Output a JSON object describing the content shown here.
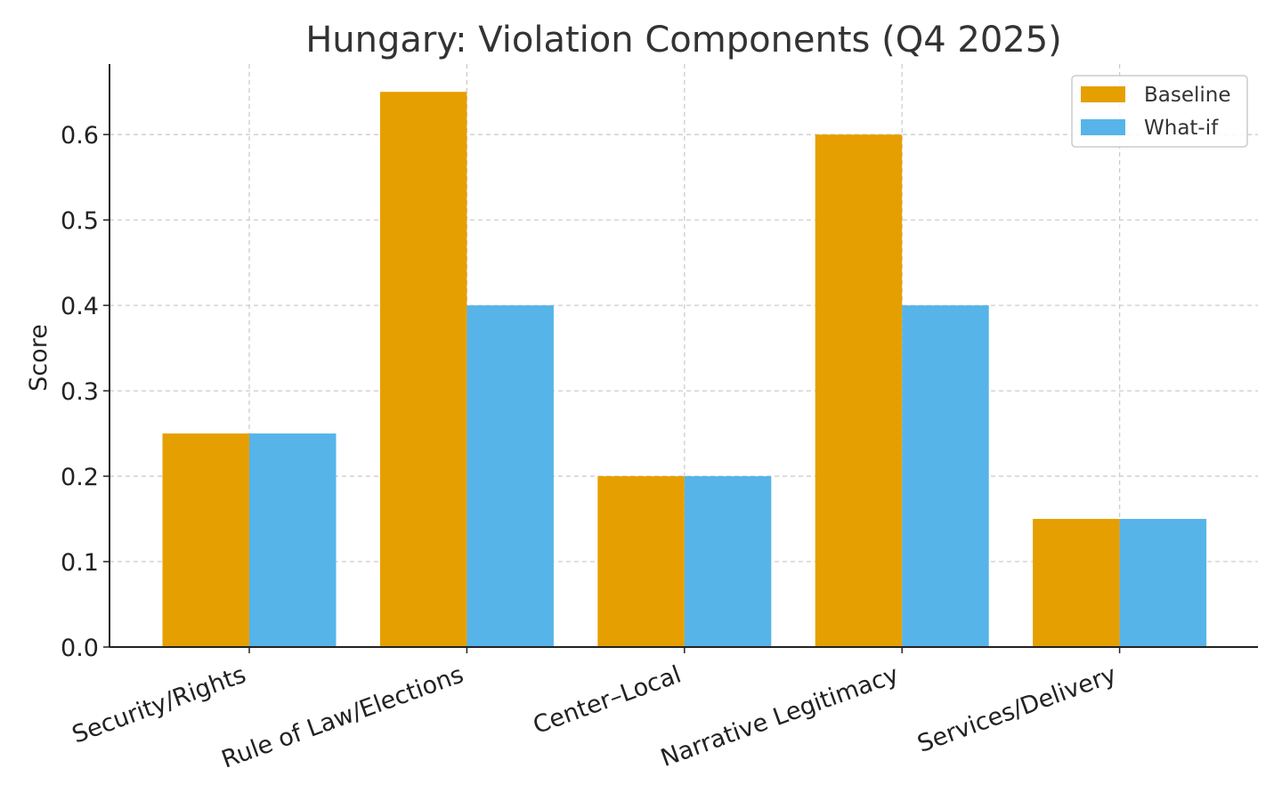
{
  "chart_data": {
    "type": "bar",
    "title": "Hungary: Violation Components (Q4 2025)",
    "xlabel": "",
    "ylabel": "Score",
    "categories": [
      "Security/Rights",
      "Rule of Law/Elections",
      "Center–Local",
      "Narrative Legitimacy",
      "Services/Delivery"
    ],
    "series": [
      {
        "name": "Baseline",
        "color": "#E69F00",
        "values": [
          0.25,
          0.65,
          0.2,
          0.6,
          0.15
        ]
      },
      {
        "name": "What-if",
        "color": "#56B4E9",
        "values": [
          0.25,
          0.4,
          0.2,
          0.4,
          0.15
        ]
      }
    ],
    "ylim": [
      0,
      0.6825
    ],
    "yticks": [
      "0.0",
      "0.1",
      "0.2",
      "0.3",
      "0.4",
      "0.5",
      "0.6"
    ],
    "grid": true,
    "legend_position": "top-right"
  }
}
